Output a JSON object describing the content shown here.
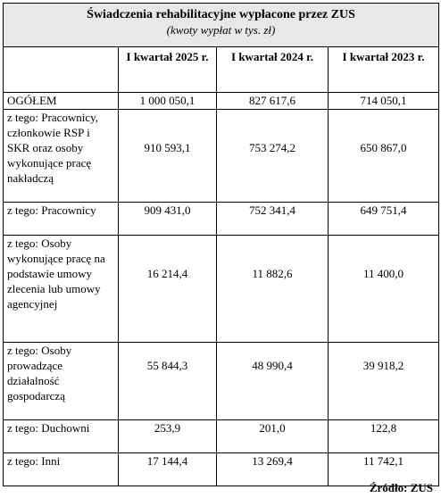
{
  "table": {
    "title": "Świadczenia rehabilitacyjne wypłacone przez ZUS",
    "subtitle": "(kwoty wypłat w tys. zł)",
    "columns": [
      "I kwartał 2025 r.",
      "I kwartał 2024 r.",
      "I kwartał 2023 r."
    ],
    "rows": [
      {
        "label": "OGÓŁEM",
        "values": [
          "1 000 050,1",
          "827 617,6",
          "714 050,1"
        ]
      },
      {
        "label": "z tego: Pracownicy, członkowie RSP i SKR oraz osoby wykonujące pracę nakładczą",
        "values": [
          "910 593,1",
          "753 274,2",
          "650 867,0"
        ]
      },
      {
        "label": "z tego: Pracownicy",
        "values": [
          "909 431,0",
          "752 341,4",
          "649 751,4"
        ]
      },
      {
        "label": "z tego: Osoby wykonujące pracę na podstawie umowy zlecenia lub umowy agencyjnej",
        "values": [
          "16 214,4",
          "11 882,6",
          "11 400,0"
        ]
      },
      {
        "label": "z tego: Osoby prowadzące działalność gospodarczą",
        "values": [
          "55 844,3",
          "48 990,4",
          "39 918,2"
        ]
      },
      {
        "label": "z tego: Duchowni",
        "values": [
          "253,9",
          "201,0",
          "122,8"
        ]
      },
      {
        "label": "z tego: Inni",
        "values": [
          "17 144,4",
          "13 269,4",
          "11 742,1"
        ]
      }
    ]
  },
  "source": "Źródło: ZUS"
}
